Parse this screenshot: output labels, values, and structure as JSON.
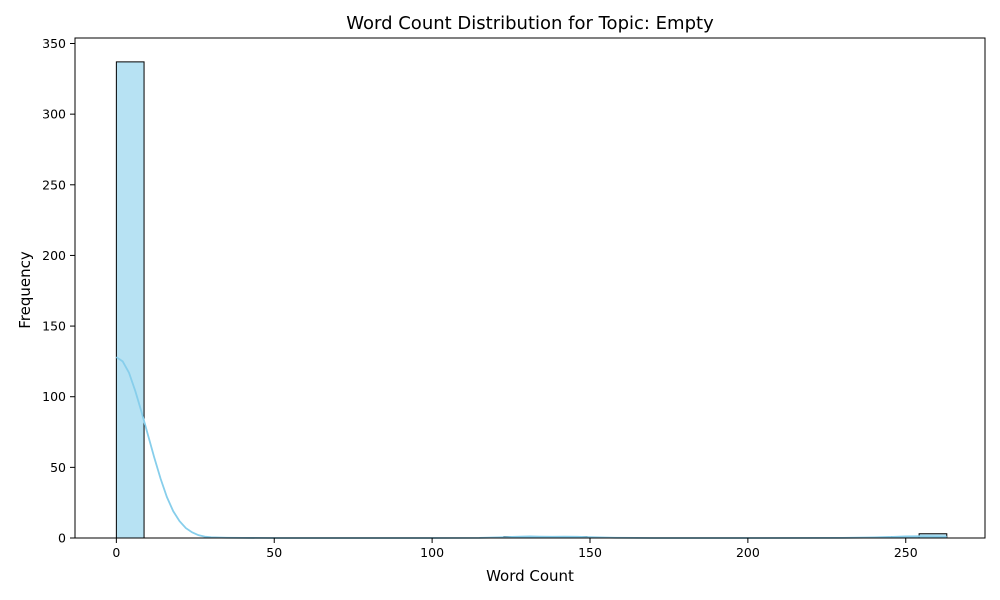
{
  "chart_data": {
    "type": "bar",
    "title": "Word Count Distribution for Topic: Empty",
    "xlabel": "Word Count",
    "ylabel": "Frequency",
    "xlim": [
      -13.1,
      275.1
    ],
    "ylim": [
      0,
      353.9
    ],
    "xticks": [
      0,
      50,
      100,
      150,
      200,
      250
    ],
    "yticks": [
      0,
      50,
      100,
      150,
      200,
      250,
      300,
      350
    ],
    "bin_edges": [
      0,
      8.77,
      17.53,
      26.3,
      35.07,
      43.83,
      52.6,
      61.37,
      70.13,
      78.9,
      87.67,
      96.43,
      105.2,
      113.97,
      122.73,
      131.5,
      140.27,
      149.03,
      157.8,
      166.57,
      175.33,
      184.1,
      192.87,
      201.63,
      210.4,
      219.17,
      227.93,
      236.7,
      245.47,
      254.23,
      263
    ],
    "counts": [
      337,
      0,
      0,
      0,
      0,
      0,
      0,
      0,
      0,
      0,
      0,
      0,
      0,
      0,
      1,
      0,
      1,
      0,
      0,
      0,
      0,
      0,
      0,
      0,
      0,
      0,
      0,
      0,
      1,
      3
    ],
    "kde": {
      "x": [
        0,
        2,
        4,
        6,
        8,
        10,
        12,
        14,
        16,
        18,
        20,
        22,
        24,
        26,
        28,
        30,
        35,
        40,
        50,
        100,
        115,
        122,
        128,
        131,
        134,
        138,
        142,
        146,
        150,
        158,
        170,
        200,
        230,
        240,
        246,
        250,
        254,
        258,
        263
      ],
      "y": [
        128,
        125,
        117,
        104,
        89,
        73,
        57,
        42,
        29,
        19,
        12,
        7,
        4,
        2,
        1,
        0.5,
        0.2,
        0.1,
        0,
        0,
        0.1,
        0.5,
        1.0,
        1.1,
        1.0,
        0.9,
        1.0,
        0.9,
        0.6,
        0.2,
        0,
        0,
        0.1,
        0.4,
        0.8,
        1.1,
        1.2,
        1.1,
        0.9
      ]
    },
    "bar_color": "#87ceeb",
    "bar_opacity": 0.6,
    "edge_color": "#000000",
    "kde_color": "#87ceeb",
    "grid": false,
    "legend": "none"
  }
}
